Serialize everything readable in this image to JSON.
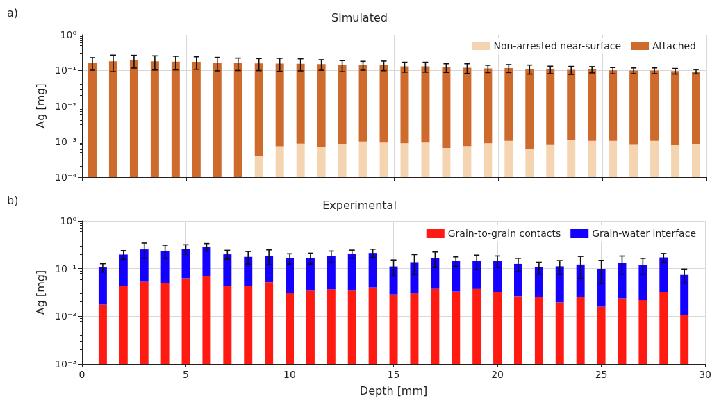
{
  "chart_data": [
    {
      "type": "bar",
      "title": "Simulated",
      "ylabel": "Ag [mg]",
      "annotations": [
        "a)"
      ],
      "stacked": true,
      "log": "y",
      "grid": true,
      "legend": "top right",
      "tick_labels": "y",
      "x": [
        0.5,
        1.5,
        2.5,
        3.5,
        4.5,
        5.5,
        6.5,
        7.5,
        8.5,
        9.5,
        10.5,
        11.5,
        12.5,
        13.5,
        14.5,
        15.5,
        16.5,
        17.5,
        18.5,
        19.5,
        20.5,
        21.5,
        22.5,
        23.5,
        24.5,
        25.5,
        26.5,
        27.5,
        28.5,
        29.5
      ],
      "xlim": [
        0,
        30
      ],
      "xticks": [
        0,
        5,
        10,
        15,
        20,
        25,
        30
      ],
      "ylim": [
        0.0001,
        1
      ],
      "yticks": [
        {
          "value": 0.0001,
          "label": "10⁻⁴"
        },
        {
          "value": 0.001,
          "label": "10⁻³"
        },
        {
          "value": 0.01,
          "label": "10⁻²"
        },
        {
          "value": 0.1,
          "label": "10⁻¹"
        },
        {
          "value": 1,
          "label": "10⁰"
        }
      ],
      "series": [
        {
          "name": "Non-arrested near-surface",
          "color": "#f5d5b1",
          "values": [
            null,
            null,
            null,
            null,
            null,
            null,
            null,
            null,
            0.00039,
            0.00074,
            0.00087,
            0.0007,
            0.00084,
            0.001,
            0.00094,
            0.00089,
            0.00094,
            0.00066,
            0.00075,
            0.00089,
            0.00105,
            0.00062,
            0.0008,
            0.00109,
            0.00105,
            0.00105,
            0.00081,
            0.00105,
            0.00079,
            0.00084
          ]
        },
        {
          "name": "Attached",
          "color": "#cd6a2c",
          "values": [
            0.164,
            0.18,
            0.19,
            0.179,
            0.176,
            0.174,
            0.164,
            0.16,
            0.156,
            0.155,
            0.153,
            0.149,
            0.139,
            0.139,
            0.139,
            0.128,
            0.128,
            0.12,
            0.117,
            0.112,
            0.115,
            0.109,
            0.105,
            0.102,
            0.105,
            0.099,
            0.098,
            0.098,
            0.095,
            0.092
          ],
          "errors": [
            0.063,
            0.088,
            0.074,
            0.077,
            0.073,
            0.067,
            0.067,
            0.061,
            0.058,
            0.062,
            0.057,
            0.049,
            0.048,
            0.039,
            0.042,
            0.04,
            0.04,
            0.033,
            0.036,
            0.026,
            0.029,
            0.031,
            0.025,
            0.026,
            0.021,
            0.02,
            0.018,
            0.018,
            0.017,
            0.013
          ]
        }
      ]
    },
    {
      "type": "bar",
      "title": "Experimental",
      "xlabel": "Depth [mm]",
      "ylabel": "Ag [mg]",
      "annotations": [
        "b)"
      ],
      "stacked": true,
      "log": "y",
      "grid": true,
      "legend": "top right",
      "x": [
        1,
        2,
        3,
        4,
        5,
        6,
        7,
        8,
        9,
        10,
        11,
        12,
        13,
        14,
        15,
        16,
        17,
        18,
        19,
        20,
        21,
        22,
        23,
        24,
        25,
        26,
        27,
        28,
        29
      ],
      "xlim": [
        0,
        30
      ],
      "xticks": [
        0,
        5,
        10,
        15,
        20,
        25,
        30
      ],
      "ylim": [
        0.001,
        1
      ],
      "yticks": [
        {
          "value": 0.001,
          "label": "10⁻³"
        },
        {
          "value": 0.01,
          "label": "10⁻²"
        },
        {
          "value": 0.1,
          "label": "10⁻¹"
        },
        {
          "value": 1,
          "label": "10⁰"
        }
      ],
      "series": [
        {
          "name": "Grain-to-grain contacts",
          "color": "#ff1a12",
          "values": [
            0.0176,
            0.0439,
            0.0531,
            0.0502,
            0.063,
            0.0697,
            0.0434,
            0.0434,
            0.052,
            0.0305,
            0.0346,
            0.037,
            0.0346,
            0.0406,
            0.0289,
            0.0302,
            0.0379,
            0.0331,
            0.0376,
            0.0324,
            0.0264,
            0.025,
            0.0195,
            0.0255,
            0.0159,
            0.0238,
            0.0218,
            0.0327,
            0.0108
          ]
        },
        {
          "name": "Grain-water interface",
          "color": "#1400ff",
          "values": [
            0.088,
            0.153,
            0.199,
            0.186,
            0.195,
            0.213,
            0.156,
            0.133,
            0.132,
            0.134,
            0.133,
            0.147,
            0.169,
            0.172,
            0.082,
            0.106,
            0.126,
            0.111,
            0.106,
            0.113,
            0.099,
            0.081,
            0.092,
            0.096,
            0.083,
            0.106,
            0.098,
            0.139,
            0.063
          ],
          "errors": [
            0.021,
            0.041,
            0.09,
            0.073,
            0.058,
            0.052,
            0.042,
            0.052,
            0.063,
            0.04,
            0.043,
            0.049,
            0.04,
            0.042,
            0.041,
            0.061,
            0.059,
            0.032,
            0.048,
            0.039,
            0.039,
            0.03,
            0.036,
            0.059,
            0.05,
            0.054,
            0.044,
            0.036,
            0.024
          ]
        }
      ]
    }
  ]
}
